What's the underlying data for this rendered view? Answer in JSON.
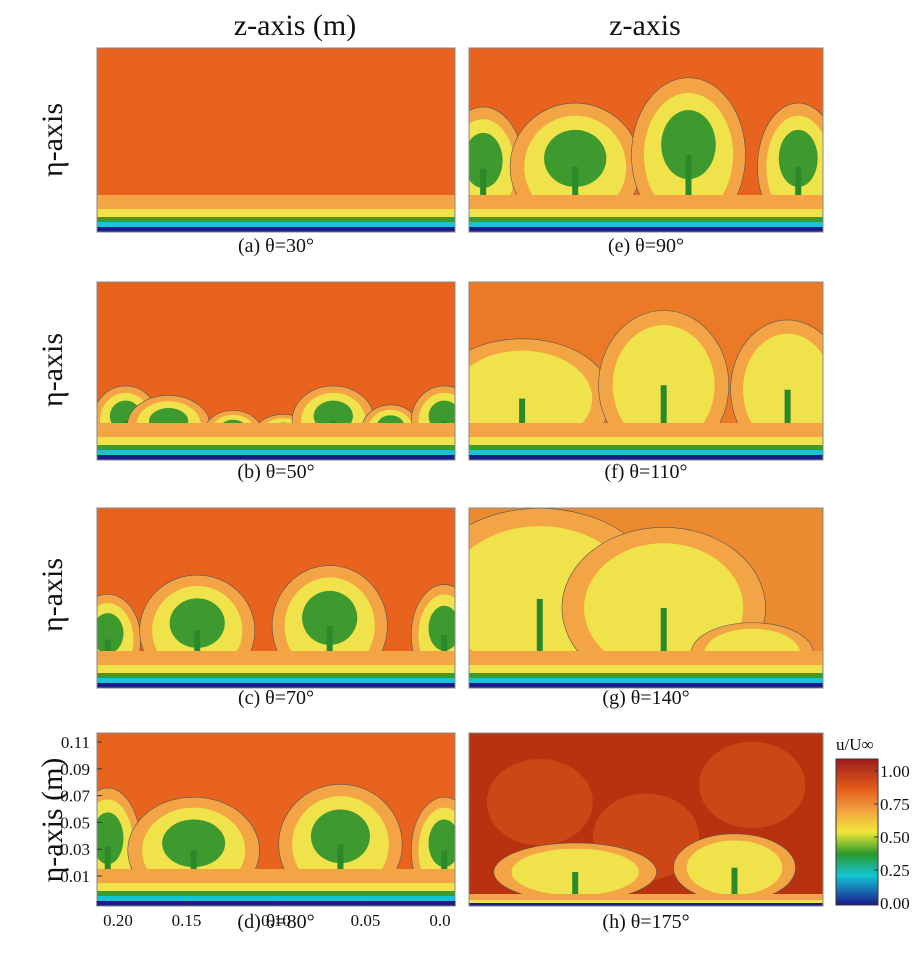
{
  "column_titles": [
    "z-axis (m)",
    "z-axis"
  ],
  "row_labels": [
    "η-axis",
    "η-axis",
    "η-axis",
    "η-axis (m)"
  ],
  "panels": [
    {
      "caption": "(a) θ=30°"
    },
    {
      "caption": "(b) θ=50°"
    },
    {
      "caption": "(c) θ=70°"
    },
    {
      "caption": "(d) θ=80°"
    },
    {
      "caption": "(e) θ=90°"
    },
    {
      "caption": "(f) θ=110°"
    },
    {
      "caption": "(g) θ=140°"
    },
    {
      "caption": "(h) θ=175°"
    }
  ],
  "y_ticks": [
    "0.11",
    "0.09",
    "0.07",
    "0.05",
    "0.03",
    "0.01"
  ],
  "x_ticks": [
    "0.20",
    "0.15",
    "0.10",
    "0.05",
    "0.0"
  ],
  "colorbar": {
    "label": "u/U∞",
    "ticks": [
      "1.00",
      "0.75",
      "0.50",
      "0.25",
      "0.00"
    ]
  }
}
